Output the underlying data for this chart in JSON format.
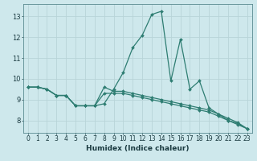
{
  "xlabel": "Humidex (Indice chaleur)",
  "xlim": [
    -0.5,
    23.5
  ],
  "ylim": [
    7.4,
    13.6
  ],
  "yticks": [
    8,
    9,
    10,
    11,
    12,
    13
  ],
  "xticks": [
    0,
    1,
    2,
    3,
    4,
    5,
    6,
    7,
    8,
    9,
    10,
    11,
    12,
    13,
    14,
    15,
    16,
    17,
    18,
    19,
    20,
    21,
    22,
    23
  ],
  "bg_color": "#cee8ec",
  "line_color": "#2e7d72",
  "grid_color": "#b8d4d8",
  "series": [
    [
      9.6,
      9.6,
      9.5,
      9.2,
      9.2,
      8.7,
      8.7,
      8.7,
      8.8,
      9.5,
      10.3,
      11.5,
      12.1,
      13.1,
      13.25,
      9.9,
      11.9,
      9.5,
      9.9,
      8.6,
      8.3,
      8.0,
      7.85,
      7.6
    ],
    [
      9.6,
      9.6,
      9.5,
      9.2,
      9.2,
      8.7,
      8.7,
      8.7,
      9.6,
      9.4,
      9.4,
      9.3,
      9.2,
      9.1,
      9.0,
      8.9,
      8.8,
      8.7,
      8.6,
      8.5,
      8.3,
      8.1,
      7.9,
      7.6
    ],
    [
      9.6,
      9.6,
      9.5,
      9.2,
      9.2,
      8.7,
      8.7,
      8.7,
      9.3,
      9.3,
      9.3,
      9.2,
      9.1,
      9.0,
      8.9,
      8.8,
      8.7,
      8.6,
      8.5,
      8.4,
      8.2,
      8.0,
      7.8,
      7.6
    ]
  ]
}
